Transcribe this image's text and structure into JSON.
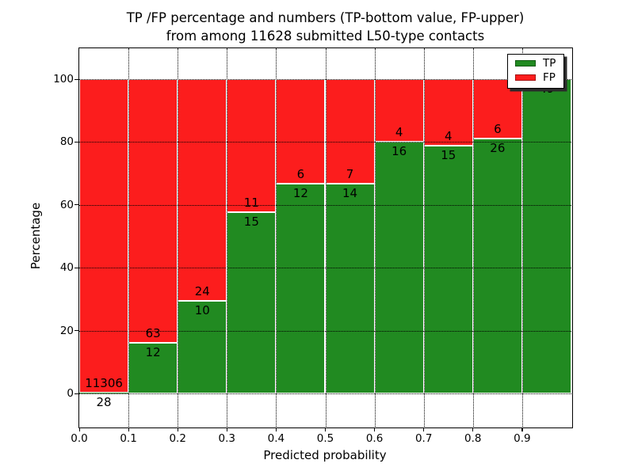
{
  "title": {
    "line1": "TP /FP percentage and numbers (TP-bottom value, FP-upper)",
    "line2": "from among 11628 submitted L50-type contacts"
  },
  "axes": {
    "xlabel": "Predicted probability",
    "ylabel": "Percentage",
    "x_tick_labels": [
      "0.0",
      "0.1",
      "0.2",
      "0.3",
      "0.4",
      "0.5",
      "0.6",
      "0.7",
      "0.8",
      "0.9"
    ],
    "y_tick_labels": [
      "0",
      "20",
      "40",
      "60",
      "80",
      "100"
    ],
    "y_tick_values": [
      0,
      20,
      40,
      60,
      80,
      100
    ],
    "grid_style": "dotted"
  },
  "legend": {
    "position": "upper-right",
    "items": [
      {
        "label": "TP",
        "color": "#218a21"
      },
      {
        "label": "FP",
        "color": "#fc1d1d"
      }
    ]
  },
  "chart_data": {
    "type": "bar",
    "subtype": "stacked-percentage",
    "title": "TP /FP percentage and numbers (TP-bottom value, FP-upper) from among 11628 submitted L50-type contacts",
    "xlabel": "Predicted probability",
    "ylabel": "Percentage",
    "xlim": [
      0.0,
      1.0
    ],
    "ylim": [
      0,
      100
    ],
    "bin_width": 0.1,
    "bin_starts": [
      0.0,
      0.1,
      0.2,
      0.3,
      0.4,
      0.5,
      0.6,
      0.7,
      0.8,
      0.9
    ],
    "series": [
      {
        "name": "TP",
        "color": "#218a21",
        "counts": [
          28,
          12,
          10,
          15,
          12,
          14,
          16,
          15,
          26,
          49
        ],
        "pct": [
          0.2,
          16.0,
          29.4,
          57.7,
          66.7,
          66.7,
          80.0,
          78.9,
          81.2,
          100.0
        ]
      },
      {
        "name": "FP",
        "color": "#fc1d1d",
        "counts": [
          11306,
          63,
          24,
          11,
          6,
          7,
          4,
          4,
          6,
          null
        ],
        "pct": [
          99.8,
          84.0,
          70.6,
          42.3,
          33.3,
          33.3,
          20.0,
          21.1,
          18.8,
          0.0
        ]
      }
    ],
    "bar_labels": {
      "tp": [
        "28",
        "12",
        "10",
        "15",
        "12",
        "14",
        "16",
        "15",
        "26",
        "49"
      ],
      "fp": [
        "11306",
        "63",
        "24",
        "11",
        "6",
        "7",
        "4",
        "4",
        "6",
        ""
      ]
    }
  }
}
